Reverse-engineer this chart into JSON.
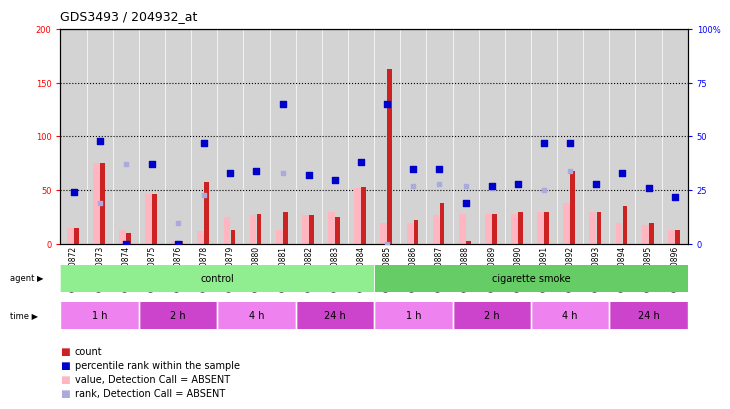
{
  "title": "GDS3493 / 204932_at",
  "samples": [
    "GSM270872",
    "GSM270873",
    "GSM270874",
    "GSM270875",
    "GSM270876",
    "GSM270878",
    "GSM270879",
    "GSM270880",
    "GSM270881",
    "GSM270882",
    "GSM270883",
    "GSM270884",
    "GSM270885",
    "GSM270886",
    "GSM270887",
    "GSM270888",
    "GSM270889",
    "GSM270890",
    "GSM270891",
    "GSM270892",
    "GSM270893",
    "GSM270894",
    "GSM270895",
    "GSM270896"
  ],
  "count_red": [
    15,
    75,
    10,
    47,
    3,
    58,
    13,
    28,
    30,
    27,
    25,
    53,
    163,
    22,
    38,
    3,
    28,
    30,
    30,
    68,
    30,
    35,
    20,
    13
  ],
  "percentile_blue": [
    24,
    48,
    0,
    37,
    0,
    47,
    33,
    34,
    65,
    32,
    30,
    38,
    65,
    35,
    35,
    19,
    27,
    28,
    47,
    47,
    28,
    33,
    26,
    22
  ],
  "value_absent_pink": [
    15,
    75,
    13,
    47,
    3,
    12,
    25,
    27,
    13,
    27,
    30,
    52,
    20,
    20,
    27,
    28,
    28,
    28,
    30,
    38,
    30,
    20,
    18,
    13
  ],
  "rank_absent_lightblue": [
    24,
    19,
    37,
    37,
    10,
    23,
    33,
    34,
    33,
    32,
    30,
    38,
    0,
    27,
    28,
    27,
    26,
    28,
    25,
    34,
    28,
    33,
    26,
    22
  ],
  "agent_groups": [
    {
      "label": "control",
      "start": 0,
      "end": 12,
      "color": "#90EE90"
    },
    {
      "label": "cigarette smoke",
      "start": 12,
      "end": 24,
      "color": "#66CC66"
    }
  ],
  "time_groups": [
    {
      "label": "1 h",
      "start": 0,
      "end": 3
    },
    {
      "label": "2 h",
      "start": 3,
      "end": 6
    },
    {
      "label": "4 h",
      "start": 6,
      "end": 9
    },
    {
      "label": "24 h",
      "start": 9,
      "end": 12
    },
    {
      "label": "1 h",
      "start": 12,
      "end": 15
    },
    {
      "label": "2 h",
      "start": 15,
      "end": 18
    },
    {
      "label": "4 h",
      "start": 18,
      "end": 21
    },
    {
      "label": "24 h",
      "start": 21,
      "end": 24
    }
  ],
  "left_ylim": [
    0,
    200
  ],
  "right_ylim": [
    0,
    100
  ],
  "left_yticks": [
    0,
    50,
    100,
    150,
    200
  ],
  "right_yticks": [
    0,
    25,
    50,
    75,
    100
  ],
  "right_yticklabels": [
    "0",
    "25",
    "50",
    "75",
    "100%"
  ],
  "bar_color_red": "#CC2222",
  "bar_color_pink": "#FFB6C1",
  "dot_color_blue": "#0000CC",
  "dot_color_lightblue": "#AAAADD",
  "background_color": "#D3D3D3",
  "title_fontsize": 9,
  "tick_fontsize": 6,
  "legend_fontsize": 7,
  "time_colors": [
    "#EE82EE",
    "#CC44CC",
    "#EE82EE",
    "#CC44CC",
    "#EE82EE",
    "#CC44CC",
    "#EE82EE",
    "#CC44CC"
  ]
}
